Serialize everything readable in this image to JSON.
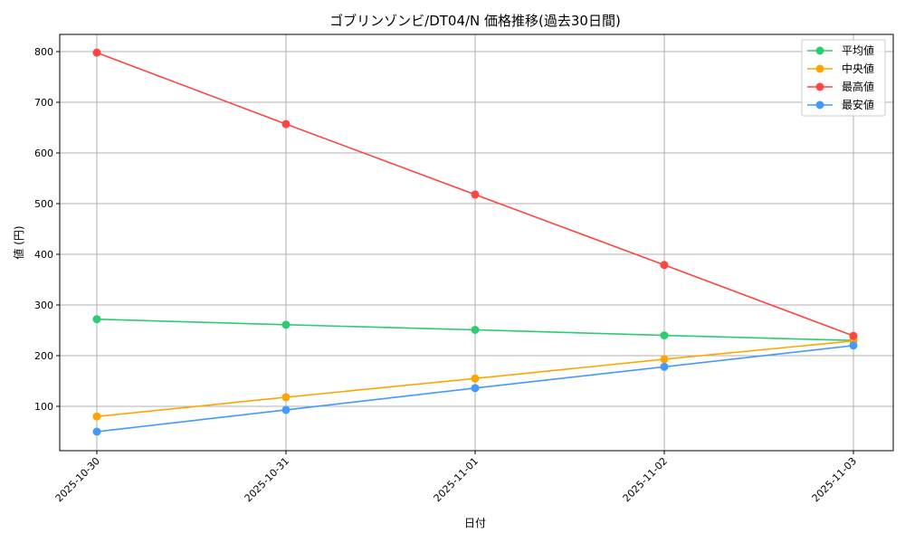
{
  "chart_data": {
    "type": "line",
    "title": "ゴブリンゾンビ/DT04/N 価格推移(過去30日間)",
    "xlabel": "日付",
    "ylabel": "値 (円)",
    "categories": [
      "2025-10-30",
      "2025-10-31",
      "2025-11-01",
      "2025-11-02",
      "2025-11-03"
    ],
    "ylim": [
      12.5,
      834
    ],
    "yticks": [
      100,
      200,
      300,
      400,
      500,
      600,
      700,
      800
    ],
    "grid": true,
    "legend_position": "top-right",
    "series": [
      {
        "name": "平均値",
        "color": "#2ecc71",
        "values": [
          272,
          261,
          251,
          240,
          230
        ]
      },
      {
        "name": "中央値",
        "color": "#ffa500",
        "values": [
          80,
          118,
          155,
          193,
          229
        ]
      },
      {
        "name": "最高値",
        "color": "#ff4444",
        "values": [
          798,
          657,
          518,
          379,
          239
        ]
      },
      {
        "name": "最安値",
        "color": "#4499ff",
        "values": [
          50,
          93,
          136,
          178,
          220
        ]
      }
    ]
  }
}
